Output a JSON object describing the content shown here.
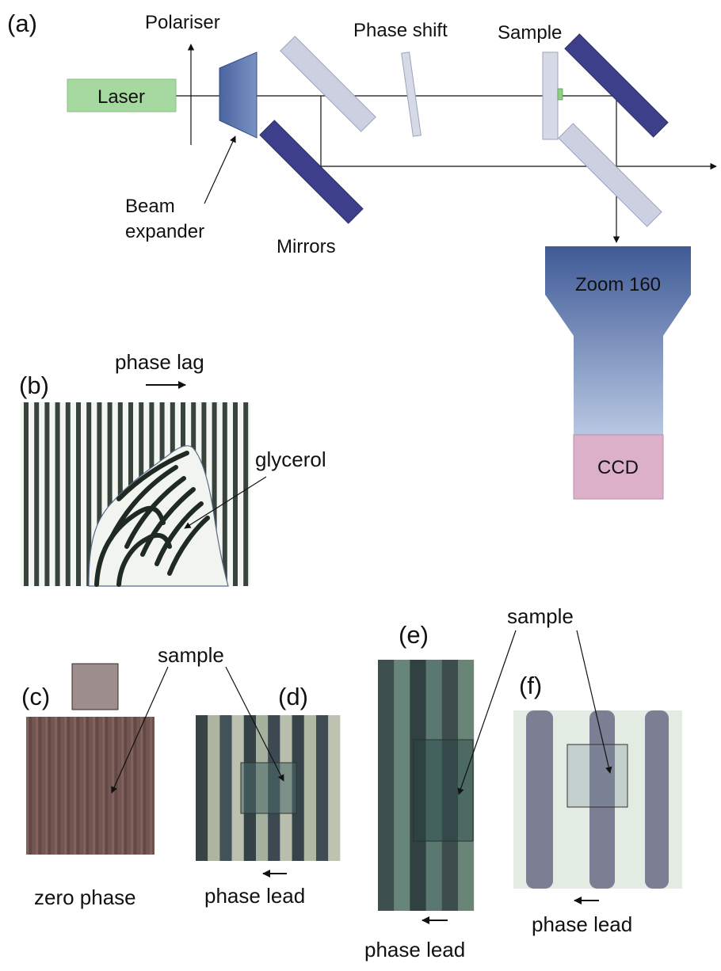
{
  "panels": {
    "a": "(a)",
    "b": "(b)",
    "c": "(c)",
    "d": "(d)",
    "e": "(e)",
    "f": "(f)"
  },
  "setup": {
    "laser": "Laser",
    "polariser": "Polariser",
    "beam_expander_line1": "Beam",
    "beam_expander_line2": "expander",
    "mirrors": "Mirrors",
    "phase_shift": "Phase shift",
    "sample": "Sample",
    "zoom": "Zoom 160",
    "ccd": "CCD"
  },
  "panel_b": {
    "phase_lag": "phase lag",
    "glycerol": "glycerol"
  },
  "bottom": {
    "sample_cd": "sample",
    "sample_ef": "sample",
    "zero_phase": "zero phase",
    "phase_lead_d": "phase lead",
    "phase_lead_e": "phase lead",
    "phase_lead_f": "phase lead"
  },
  "colors": {
    "laser_fill": "#a6d9a0",
    "mirror_dark": "#3d3f8a",
    "mirror_light": "#ccd0e0",
    "zoom_top": "#3f5a96",
    "zoom_bottom": "#b4c4e0",
    "ccd_fill": "#dcb0c8"
  }
}
